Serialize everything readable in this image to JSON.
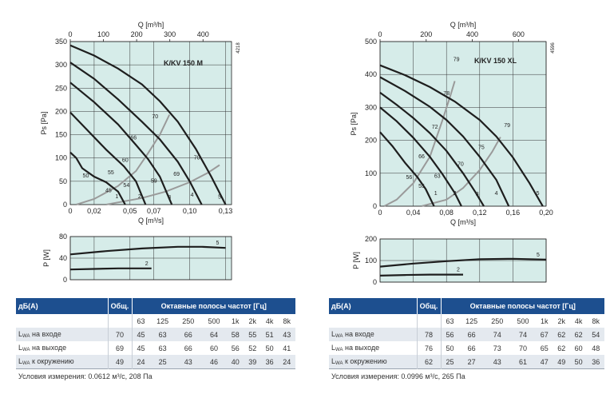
{
  "panels": [
    {
      "model": "K/KV 150 M",
      "code": "4218",
      "q_top_label": "Q [m³/h]",
      "q_bottom_label": "Q [m³/s]",
      "ps_label": "Ps [Pa]",
      "p_label": "P [W]",
      "colors": {
        "plot_bg": "#d6ece9",
        "curve": "#1e1e1e",
        "system": "#9a9a9a",
        "grid": "#333333"
      },
      "chart_data": {
        "type": "line",
        "xlim": [
          0,
          0.135
        ],
        "ylim": [
          0,
          350
        ],
        "x_ticks": [
          0,
          0.02,
          0.05,
          0.07,
          0.1,
          0.13
        ],
        "x_tick_labels": [
          "0",
          "0,02",
          "0,05",
          "0,07",
          "0,10",
          "0,13"
        ],
        "y_ticks": [
          0,
          50,
          100,
          150,
          200,
          250,
          300,
          350
        ],
        "y_tick_labels": [
          "0",
          "50",
          "100",
          "150",
          "200",
          "250",
          "300",
          "350"
        ],
        "top_ticks": [
          0,
          100,
          200,
          300,
          400
        ],
        "top_tick_labels": [
          "0",
          "100",
          "200",
          "300",
          "400"
        ],
        "top_scale": 3600,
        "fan_curves": [
          {
            "label": "5",
            "points": [
              [
                0,
                342
              ],
              [
                0.02,
                320
              ],
              [
                0.04,
                292
              ],
              [
                0.06,
                258
              ],
              [
                0.075,
                222
              ],
              [
                0.09,
                178
              ],
              [
                0.105,
                120
              ],
              [
                0.118,
                60
              ],
              [
                0.13,
                0
              ]
            ]
          },
          {
            "label": "4",
            "points": [
              [
                0,
                305
              ],
              [
                0.02,
                270
              ],
              [
                0.04,
                226
              ],
              [
                0.06,
                178
              ],
              [
                0.075,
                140
              ],
              [
                0.09,
                92
              ],
              [
                0.1,
                50
              ],
              [
                0.11,
                0
              ]
            ]
          },
          {
            "label": "3",
            "points": [
              [
                0,
                262
              ],
              [
                0.02,
                220
              ],
              [
                0.04,
                172
              ],
              [
                0.055,
                128
              ],
              [
                0.065,
                98
              ],
              [
                0.075,
                60
              ],
              [
                0.085,
                0
              ]
            ]
          },
          {
            "label": "2",
            "points": [
              [
                0,
                198
              ],
              [
                0.015,
                158
              ],
              [
                0.03,
                118
              ],
              [
                0.045,
                82
              ],
              [
                0.055,
                50
              ],
              [
                0.063,
                0
              ]
            ]
          },
          {
            "label": "1",
            "points": [
              [
                0,
                112
              ],
              [
                0.005,
                100
              ],
              [
                0.01,
                78
              ],
              [
                0.02,
                60
              ],
              [
                0.03,
                48
              ],
              [
                0.04,
                28
              ],
              [
                0.046,
                0
              ]
            ]
          }
        ],
        "system_curves": [
          {
            "label": "",
            "points": [
              [
                0.005,
                0
              ],
              [
                0.02,
                12
              ],
              [
                0.04,
                40
              ],
              [
                0.055,
                72
              ],
              [
                0.065,
                110
              ],
              [
                0.075,
                150
              ],
              [
                0.083,
                193
              ]
            ]
          },
          {
            "label": "",
            "points": [
              [
                0.03,
                0
              ],
              [
                0.06,
                14
              ],
              [
                0.08,
                28
              ],
              [
                0.1,
                48
              ],
              [
                0.115,
                68
              ],
              [
                0.125,
                85
              ]
            ]
          }
        ],
        "point_labels": [
          {
            "text": "70",
            "x": 0.071,
            "y": 185
          },
          {
            "text": "66",
            "x": 0.053,
            "y": 140
          },
          {
            "text": "60",
            "x": 0.046,
            "y": 92
          },
          {
            "text": "55",
            "x": 0.034,
            "y": 65
          },
          {
            "text": "50",
            "x": 0.013,
            "y": 58
          },
          {
            "text": "54",
            "x": 0.047,
            "y": 38
          },
          {
            "text": "45",
            "x": 0.032,
            "y": 27
          },
          {
            "text": "59",
            "x": 0.07,
            "y": 47
          },
          {
            "text": "69",
            "x": 0.089,
            "y": 62
          },
          {
            "text": "70",
            "x": 0.106,
            "y": 97
          },
          {
            "text": "1",
            "x": 0.039,
            "y": 14
          },
          {
            "text": "2",
            "x": 0.058,
            "y": 14
          },
          {
            "text": "3",
            "x": 0.083,
            "y": 12
          },
          {
            "text": "4",
            "x": 0.102,
            "y": 17
          },
          {
            "text": "5",
            "x": 0.125,
            "y": 13
          }
        ],
        "power_ylim": [
          0,
          80
        ],
        "power_y_ticks": [
          0,
          40,
          80
        ],
        "power_y_tick_labels": [
          "0",
          "40",
          "80"
        ],
        "power_curves": [
          {
            "label": "5",
            "points": [
              [
                0,
                47
              ],
              [
                0.03,
                53
              ],
              [
                0.06,
                58
              ],
              [
                0.09,
                61
              ],
              [
                0.11,
                61
              ],
              [
                0.13,
                59
              ]
            ]
          },
          {
            "label": "2",
            "points": [
              [
                0,
                19
              ],
              [
                0.02,
                20
              ],
              [
                0.04,
                21
              ],
              [
                0.068,
                21
              ]
            ]
          }
        ]
      },
      "table": {
        "header_db": "дБ(A)",
        "header_total": "Общ.",
        "header_bands": "Октавные полосы частот [Гц]",
        "bands": [
          "63",
          "125",
          "250",
          "500",
          "1k",
          "2k",
          "4k",
          "8k"
        ],
        "rows": [
          {
            "label": "на входе",
            "total": "70",
            "values": [
              "45",
              "63",
              "66",
              "64",
              "58",
              "55",
              "51",
              "43"
            ]
          },
          {
            "label": "на выходе",
            "total": "69",
            "values": [
              "45",
              "63",
              "66",
              "60",
              "56",
              "52",
              "50",
              "41"
            ]
          },
          {
            "label": "к окружению",
            "total": "49",
            "values": [
              "24",
              "25",
              "43",
              "46",
              "40",
              "39",
              "36",
              "24"
            ]
          }
        ],
        "condition": "Условия измерения: 0.0612 м³/с, 208 Па"
      }
    },
    {
      "model": "K/KV 150 XL",
      "code": "4596",
      "q_top_label": "Q [m³/h]",
      "q_bottom_label": "Q [m³/s]",
      "ps_label": "Ps [Pa]",
      "p_label": "P [W]",
      "colors": {
        "plot_bg": "#d6ece9",
        "curve": "#1e1e1e",
        "system": "#9a9a9a",
        "grid": "#333333"
      },
      "chart_data": {
        "type": "line",
        "xlim": [
          0,
          0.2
        ],
        "ylim": [
          0,
          500
        ],
        "x_ticks": [
          0,
          0.04,
          0.08,
          0.12,
          0.16,
          0.2
        ],
        "x_tick_labels": [
          "0",
          "0,04",
          "0,08",
          "0,12",
          "0,16",
          "0,20"
        ],
        "y_ticks": [
          0,
          100,
          200,
          300,
          400,
          500
        ],
        "y_tick_labels": [
          "0",
          "100",
          "200",
          "300",
          "400",
          "500"
        ],
        "top_ticks": [
          0,
          200,
          400,
          600
        ],
        "top_tick_labels": [
          "0",
          "200",
          "400",
          "600"
        ],
        "top_scale": 3600,
        "fan_curves": [
          {
            "label": "5",
            "points": [
              [
                0,
                428
              ],
              [
                0.03,
                398
              ],
              [
                0.06,
                362
              ],
              [
                0.09,
                318
              ],
              [
                0.12,
                262
              ],
              [
                0.14,
                212
              ],
              [
                0.16,
                148
              ],
              [
                0.18,
                70
              ],
              [
                0.196,
                0
              ]
            ]
          },
          {
            "label": "4",
            "points": [
              [
                0,
                392
              ],
              [
                0.03,
                350
              ],
              [
                0.06,
                302
              ],
              [
                0.08,
                262
              ],
              [
                0.1,
                212
              ],
              [
                0.12,
                150
              ],
              [
                0.14,
                80
              ],
              [
                0.155,
                0
              ]
            ]
          },
          {
            "label": "3",
            "points": [
              [
                0,
                345
              ],
              [
                0.02,
                308
              ],
              [
                0.04,
                268
              ],
              [
                0.06,
                222
              ],
              [
                0.08,
                168
              ],
              [
                0.1,
                100
              ],
              [
                0.115,
                42
              ],
              [
                0.125,
                0
              ]
            ]
          },
          {
            "label": "2",
            "points": [
              [
                0,
                300
              ],
              [
                0.02,
                258
              ],
              [
                0.04,
                208
              ],
              [
                0.06,
                150
              ],
              [
                0.075,
                98
              ],
              [
                0.09,
                40
              ],
              [
                0.098,
                0
              ]
            ]
          },
          {
            "label": "1",
            "points": [
              [
                0,
                225
              ],
              [
                0.015,
                182
              ],
              [
                0.03,
                132
              ],
              [
                0.045,
                88
              ],
              [
                0.055,
                52
              ],
              [
                0.065,
                0
              ]
            ]
          }
        ],
        "system_curves": [
          {
            "label": "",
            "points": [
              [
                0.005,
                0
              ],
              [
                0.02,
                20
              ],
              [
                0.04,
                70
              ],
              [
                0.06,
                150
              ],
              [
                0.075,
                260
              ],
              [
                0.085,
                338
              ],
              [
                0.09,
                380
              ]
            ]
          },
          {
            "label": "",
            "points": [
              [
                0.05,
                0
              ],
              [
                0.08,
                20
              ],
              [
                0.1,
                55
              ],
              [
                0.12,
                110
              ],
              [
                0.135,
                165
              ],
              [
                0.145,
                210
              ]
            ]
          }
        ],
        "point_labels": [
          {
            "text": "79",
            "x": 0.092,
            "y": 441
          },
          {
            "text": "78",
            "x": 0.08,
            "y": 337
          },
          {
            "text": "72",
            "x": 0.066,
            "y": 235
          },
          {
            "text": "66",
            "x": 0.05,
            "y": 146
          },
          {
            "text": "56",
            "x": 0.035,
            "y": 83
          },
          {
            "text": "55",
            "x": 0.05,
            "y": 56
          },
          {
            "text": "63",
            "x": 0.069,
            "y": 86
          },
          {
            "text": "70",
            "x": 0.097,
            "y": 123
          },
          {
            "text": "75",
            "x": 0.122,
            "y": 174
          },
          {
            "text": "79",
            "x": 0.153,
            "y": 240
          },
          {
            "text": "1",
            "x": 0.067,
            "y": 34
          },
          {
            "text": "2",
            "x": 0.09,
            "y": 34
          },
          {
            "text": "3",
            "x": 0.117,
            "y": 31
          },
          {
            "text": "4",
            "x": 0.14,
            "y": 34
          },
          {
            "text": "5",
            "x": 0.19,
            "y": 34
          }
        ],
        "power_ylim": [
          0,
          200
        ],
        "power_y_ticks": [
          0,
          100,
          200
        ],
        "power_y_tick_labels": [
          "0",
          "100",
          "200"
        ],
        "power_curves": [
          {
            "label": "5",
            "points": [
              [
                0,
                72
              ],
              [
                0.04,
                86
              ],
              [
                0.08,
                97
              ],
              [
                0.12,
                106
              ],
              [
                0.16,
                108
              ],
              [
                0.2,
                104
              ]
            ]
          },
          {
            "label": "2",
            "points": [
              [
                0,
                30
              ],
              [
                0.03,
                33
              ],
              [
                0.06,
                35
              ],
              [
                0.1,
                35
              ]
            ]
          }
        ]
      },
      "table": {
        "header_db": "дБ(A)",
        "header_total": "Общ.",
        "header_bands": "Октавные полосы частот [Гц]",
        "bands": [
          "63",
          "125",
          "250",
          "500",
          "1k",
          "2k",
          "4k",
          "8k"
        ],
        "rows": [
          {
            "label": "на входе",
            "total": "78",
            "values": [
              "56",
              "66",
              "74",
              "74",
              "67",
              "62",
              "62",
              "54"
            ]
          },
          {
            "label": "на выходе",
            "total": "76",
            "values": [
              "50",
              "66",
              "73",
              "70",
              "65",
              "62",
              "60",
              "48"
            ]
          },
          {
            "label": "к окружению",
            "total": "62",
            "values": [
              "25",
              "27",
              "43",
              "61",
              "47",
              "49",
              "50",
              "36"
            ]
          }
        ],
        "condition": "Условия измерения: 0.0996 м³/с, 265 Па"
      }
    }
  ]
}
